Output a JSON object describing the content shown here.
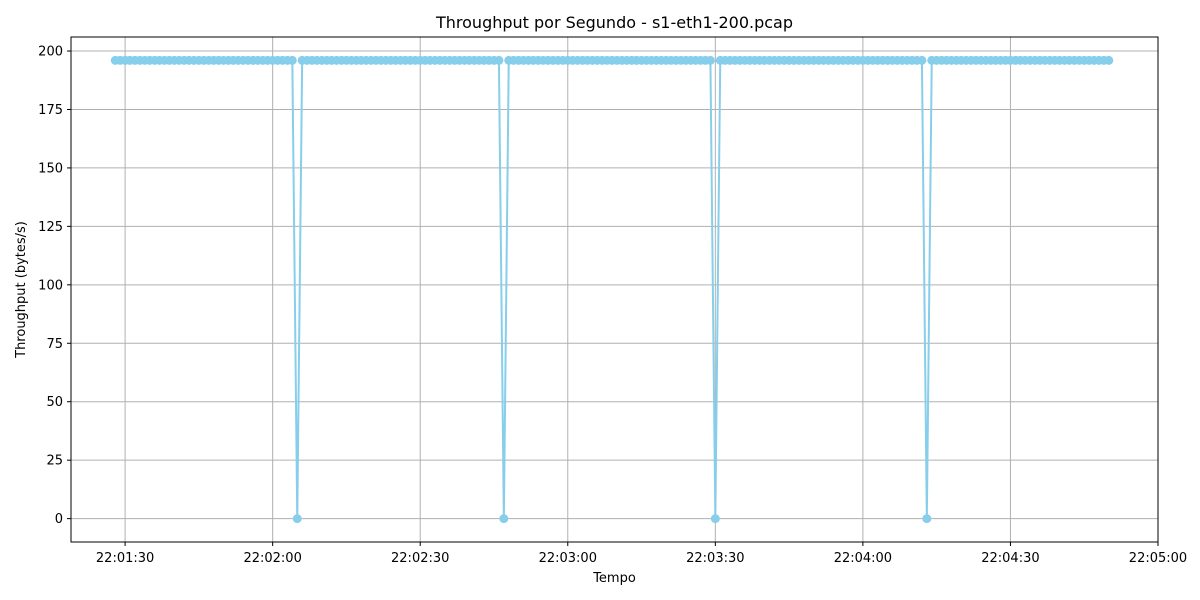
{
  "chart_data": {
    "type": "line",
    "title": "Throughput por Segundo - s1-eth1-200.pcap",
    "xlabel": "Tempo",
    "ylabel": "Throughput (bytes/s)",
    "x_ticks": [
      "22:01:30",
      "22:02:00",
      "22:02:30",
      "22:03:00",
      "22:03:30",
      "22:04:00",
      "22:04:30",
      "22:05:00"
    ],
    "y_ticks": [
      0,
      25,
      50,
      75,
      100,
      125,
      150,
      175,
      200
    ],
    "xlim": [
      "22:01:19",
      "22:05:00"
    ],
    "ylim": [
      -10,
      206
    ],
    "grid": true,
    "marker": "circle",
    "color": "#87ceeb",
    "series": [
      {
        "x_start": "22:01:28",
        "x_end": "22:04:50",
        "step_seconds": 1,
        "default_value": 196,
        "drops": [
          {
            "time": "22:02:05",
            "value": 0
          },
          {
            "time": "22:02:47",
            "value": 0
          },
          {
            "time": "22:03:30",
            "value": 0
          },
          {
            "time": "22:04:13",
            "value": 0
          }
        ]
      }
    ]
  }
}
